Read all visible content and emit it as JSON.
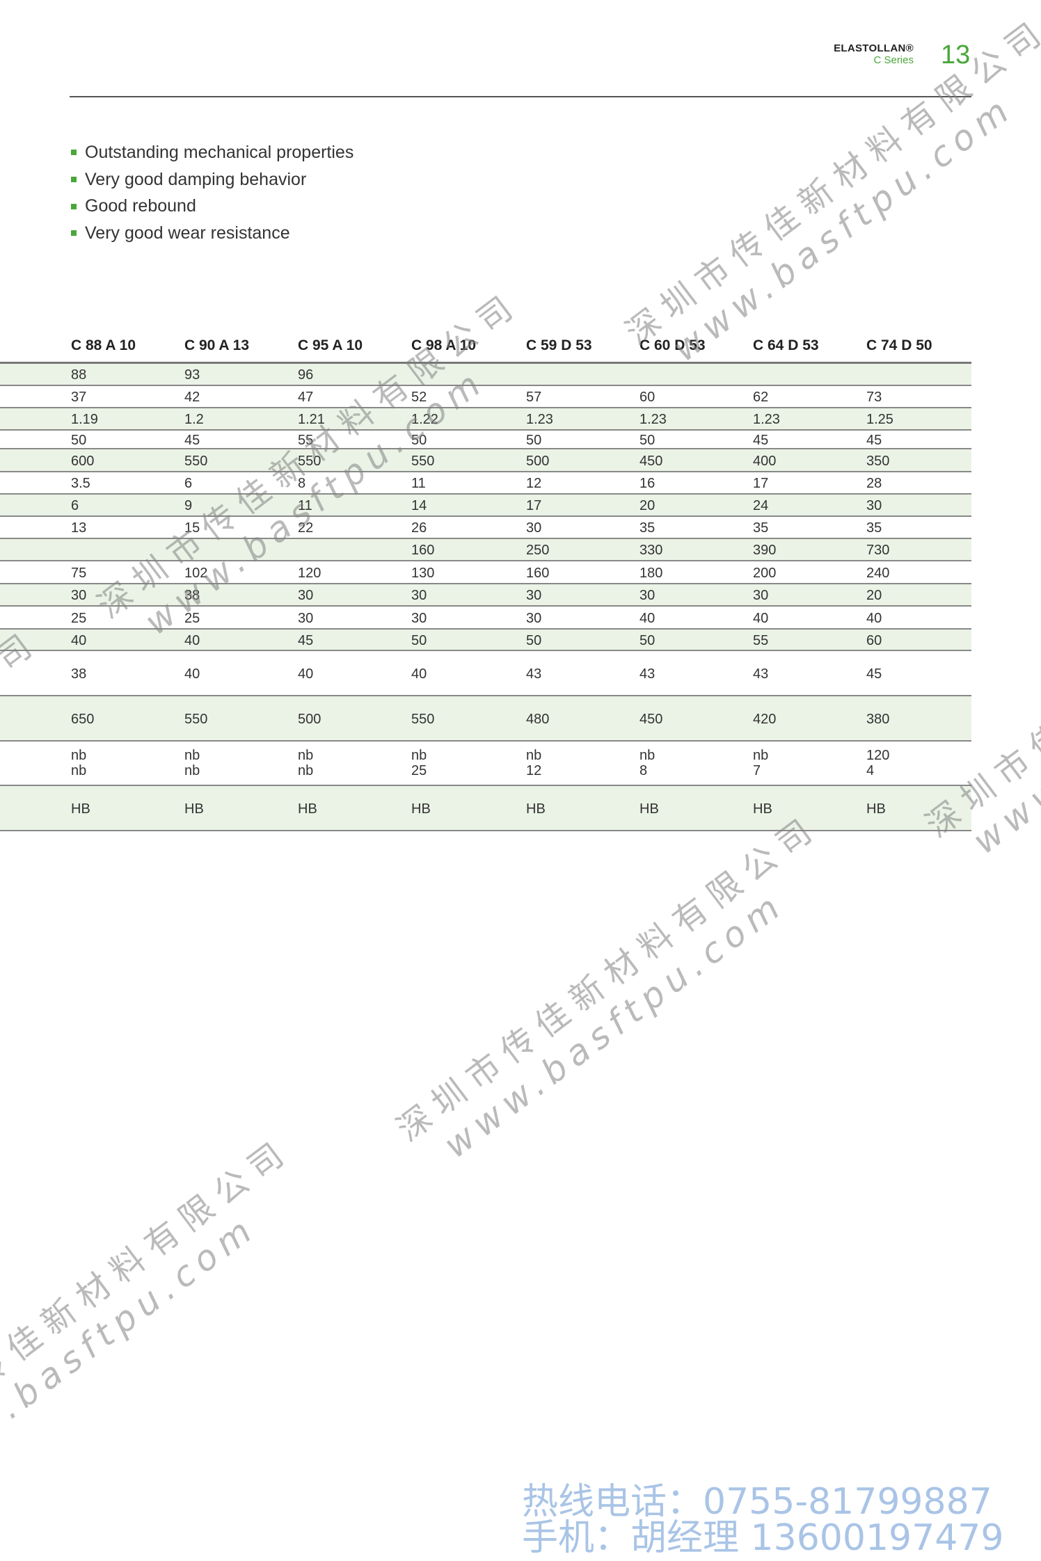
{
  "header": {
    "brand": "ELASTOLLAN®",
    "series": "C Series",
    "page_number": "13"
  },
  "features": [
    "Outstanding mechanical properties",
    "Very good damping behavior",
    "Good rebound",
    "Very good wear resistance"
  ],
  "table": {
    "columns": [
      "C 88 A 10",
      "C 90 A 13",
      "C 95 A 10",
      "C 98 A 10",
      "C 59 D 53",
      "C 60 D 53",
      "C 64 D 53",
      "C 74 D 50"
    ],
    "rows": [
      [
        "88",
        "93",
        "96",
        "",
        "",
        "",
        "",
        ""
      ],
      [
        "37",
        "42",
        "47",
        "52",
        "57",
        "60",
        "62",
        "73"
      ],
      [
        "1.19",
        "1.2",
        "1.21",
        "1.22",
        "1.23",
        "1.23",
        "1.23",
        "1.25"
      ],
      [
        "50",
        "45",
        "55",
        "50",
        "50",
        "50",
        "45",
        "45"
      ],
      [
        "600",
        "550",
        "550",
        "550",
        "500",
        "450",
        "400",
        "350"
      ],
      [
        "3.5",
        "6",
        "8",
        "11",
        "12",
        "16",
        "17",
        "28"
      ],
      [
        "6",
        "9",
        "11",
        "14",
        "17",
        "20",
        "24",
        "30"
      ],
      [
        "13",
        "15",
        "22",
        "26",
        "30",
        "35",
        "35",
        "35"
      ],
      [
        "",
        "",
        "",
        "160",
        "250",
        "330",
        "390",
        "730"
      ],
      [
        "75",
        "102",
        "120",
        "130",
        "160",
        "180",
        "200",
        "240"
      ],
      [
        "30",
        "38",
        "30",
        "30",
        "30",
        "30",
        "30",
        "20"
      ],
      [
        "25",
        "25",
        "30",
        "30",
        "30",
        "40",
        "40",
        "40"
      ],
      [
        "40",
        "40",
        "45",
        "50",
        "50",
        "50",
        "55",
        "60"
      ],
      [
        "38",
        "40",
        "40",
        "40",
        "43",
        "43",
        "43",
        "45"
      ],
      [
        "650",
        "550",
        "500",
        "550",
        "480",
        "450",
        "420",
        "380"
      ],
      [
        "nb",
        "nb",
        "nb",
        "nb",
        "nb",
        "nb",
        "nb",
        "120"
      ],
      [
        "nb",
        "nb",
        "nb",
        "25",
        "12",
        "8",
        "7",
        "4"
      ],
      [
        "HB",
        "HB",
        "HB",
        "HB",
        "HB",
        "HB",
        "HB",
        "HB"
      ]
    ]
  },
  "watermark": {
    "company": "深圳市传佳新材料有限公司",
    "url": "www.basftpu.com"
  },
  "footer": {
    "hotline": "热线电话：0755-81799887",
    "mobile": "手机：胡经理 13600197479"
  },
  "colors": {
    "accent": "#4aa63a",
    "row_shade": "#ebf3e6",
    "footer_text": "#a9c4e6"
  }
}
